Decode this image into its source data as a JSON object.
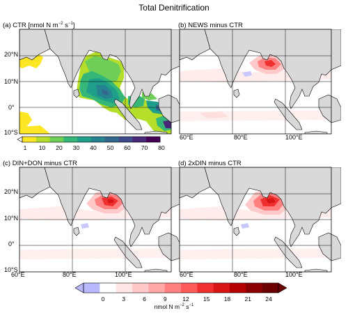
{
  "title": "Total Denitrification",
  "panels": [
    {
      "id": "a",
      "label_prefix": "(a) CTR [nmol N m",
      "label_sup1": "−2",
      "label_mid": " s",
      "label_sup2": "−1",
      "label_suffix": "]"
    },
    {
      "id": "b",
      "label": "(b) NEWS minus CTR"
    },
    {
      "id": "c",
      "label": "(c) DIN+DON minus CTR"
    },
    {
      "id": "d",
      "label": "(d) 2xDIN minus CTR"
    }
  ],
  "lat_labels": [
    "20°N",
    "10°N",
    "0°",
    "10°S"
  ],
  "lon_labels": [
    "60°E",
    "80°E",
    "100°E"
  ],
  "colorbar_ctr": {
    "ticks": [
      "1",
      "10",
      "20",
      "30",
      "40",
      "50",
      "60",
      "70",
      "80"
    ],
    "colors": [
      "#fde725",
      "#b5de2b",
      "#6ece58",
      "#35b779",
      "#1f9e89",
      "#26828e",
      "#31688e",
      "#3e4989",
      "#482878",
      "#440154"
    ]
  },
  "colorbar_diff": {
    "ticks": [
      "0",
      "3",
      "6",
      "9",
      "12",
      "15",
      "18",
      "21",
      "24"
    ],
    "unit_prefix": "nmol N m",
    "unit_sup1": "−2",
    "unit_mid": " s",
    "unit_sup2": "−1",
    "colors": [
      "#b8b8ff",
      "#ffffff",
      "#ffe6e6",
      "#ffc9c9",
      "#ffa8a8",
      "#ff8080",
      "#ff5a5a",
      "#f03030",
      "#d81414",
      "#b50000",
      "#8a0000",
      "#6b0000"
    ]
  },
  "colors": {
    "land": "#d9d9d9",
    "coast": "#000000",
    "grid": "#000000"
  }
}
